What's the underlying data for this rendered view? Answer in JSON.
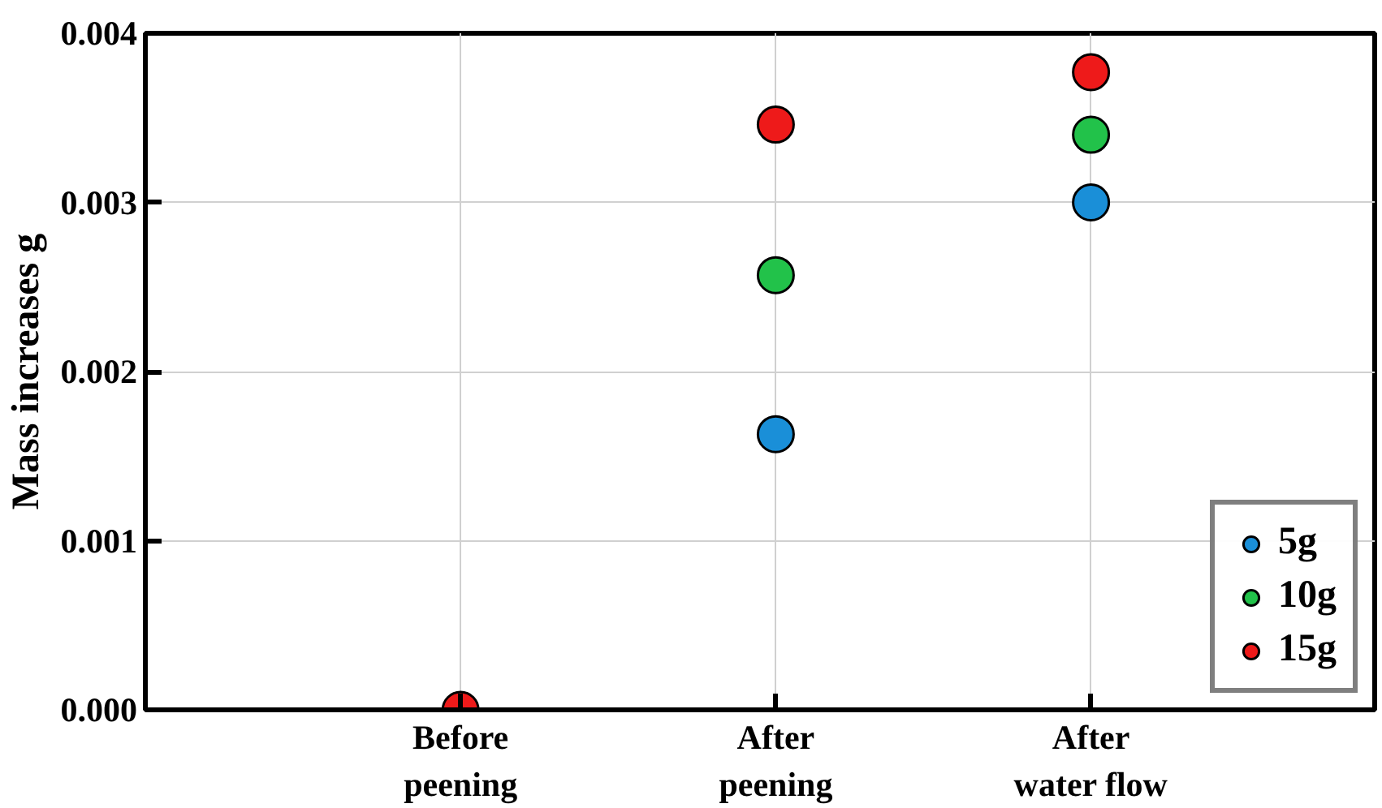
{
  "chart_data": {
    "type": "scatter",
    "ylabel": "Mass increases g",
    "categories": [
      "Before\npeening",
      "After\npeening",
      "After\nwater flow"
    ],
    "ylim": [
      0,
      0.004
    ],
    "yticks": [
      {
        "value": 0,
        "label": "0.000"
      },
      {
        "value": 0.001,
        "label": "0.001"
      },
      {
        "value": 0.002,
        "label": "0.002"
      },
      {
        "value": 0.003,
        "label": "0.003"
      },
      {
        "value": 0.004,
        "label": "0.004"
      }
    ],
    "series": [
      {
        "name": "5g",
        "color": "#1a8fd8",
        "values": [
          null,
          0.00163,
          0.003
        ]
      },
      {
        "name": "10g",
        "color": "#22c24a",
        "values": [
          null,
          0.00257,
          0.0034
        ]
      },
      {
        "name": "15g",
        "color": "#ee1a1a",
        "values": [
          0,
          0.00346,
          0.00377
        ]
      }
    ],
    "marker": "circle",
    "grid": true,
    "legend": "bottom right"
  }
}
